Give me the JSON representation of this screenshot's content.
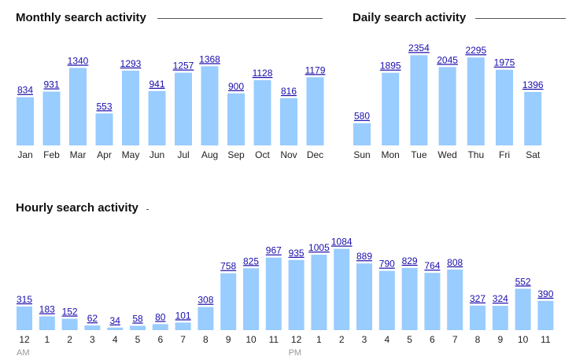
{
  "colors": {
    "bar": "#99ccff",
    "value_label": "#1a0dab",
    "rule": "#555555"
  },
  "chart_data": [
    {
      "id": "monthly",
      "type": "bar",
      "title": "Monthly search activity",
      "categories": [
        "Jan",
        "Feb",
        "Mar",
        "Apr",
        "May",
        "Jun",
        "Jul",
        "Aug",
        "Sep",
        "Oct",
        "Nov",
        "Dec"
      ],
      "values": [
        834,
        931,
        1340,
        553,
        1293,
        941,
        1257,
        1368,
        900,
        1128,
        816,
        1179
      ],
      "ylim": [
        0,
        1400
      ],
      "grid": false,
      "data_labels": true
    },
    {
      "id": "daily",
      "type": "bar",
      "title": "Daily search activity",
      "categories": [
        "Sun",
        "Mon",
        "Tue",
        "Wed",
        "Thu",
        "Fri",
        "Sat"
      ],
      "values": [
        580,
        1895,
        2354,
        2045,
        2295,
        1975,
        1396
      ],
      "ylim": [
        0,
        2400
      ],
      "grid": false,
      "data_labels": true
    },
    {
      "id": "hourly",
      "type": "bar",
      "title": "Hourly search activity",
      "categories": [
        "12",
        "1",
        "2",
        "3",
        "4",
        "5",
        "6",
        "7",
        "8",
        "9",
        "10",
        "11",
        "12",
        "1",
        "2",
        "3",
        "4",
        "5",
        "6",
        "7",
        "8",
        "9",
        "10",
        "11"
      ],
      "sub_labels": {
        "0": "AM",
        "12": "PM"
      },
      "values": [
        315,
        183,
        152,
        62,
        34,
        58,
        80,
        101,
        308,
        758,
        825,
        967,
        935,
        1005,
        1084,
        889,
        790,
        829,
        764,
        808,
        327,
        324,
        552,
        390
      ],
      "ylim": [
        0,
        1100
      ],
      "grid": false,
      "data_labels": true
    }
  ]
}
